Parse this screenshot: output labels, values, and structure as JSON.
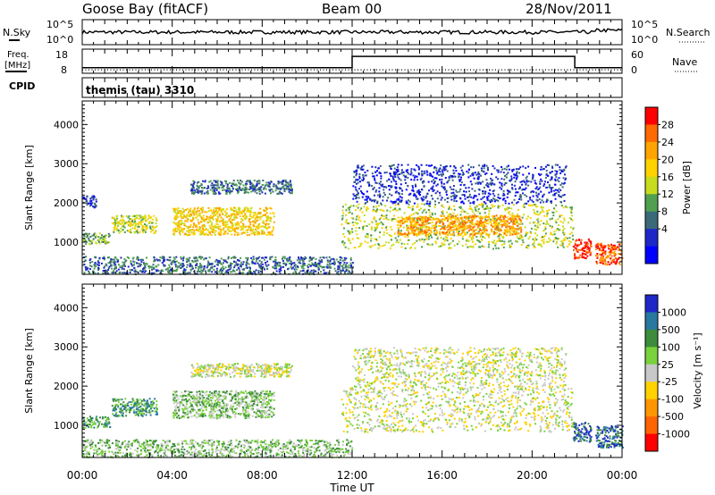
{
  "header": {
    "station": "Goose Bay (fitACF)",
    "beam": "Beam 00",
    "date": "28/Nov/2011"
  },
  "sky_panel": {
    "left_label": "N.Sky",
    "right_label": "N.Search",
    "y_ticks": [
      "10^5",
      "10^0"
    ]
  },
  "freq_panel": {
    "left_label_1": "Freq.",
    "left_label_2": "[MHz]",
    "left_ticks": [
      "18",
      "8"
    ],
    "right_label": "Nave",
    "right_ticks": [
      "60",
      "0"
    ]
  },
  "cpid_panel": {
    "left_label": "CPID",
    "mode_text": "themis (tau) 3310"
  },
  "power_panel": {
    "ylabel": "Slant Range [km]",
    "colorbar_label": "Power [dB]",
    "colorbar_ticks": [
      "28",
      "24",
      "20",
      "16",
      "12",
      "8",
      "4"
    ],
    "colorbar_colors": [
      "#ff0000",
      "#ff6a00",
      "#ffa400",
      "#ffd200",
      "#c8dc1e",
      "#50a050",
      "#3a6a78",
      "#1e28c8",
      "#0000ff"
    ]
  },
  "velocity_panel": {
    "ylabel": "Slant Range [km]",
    "colorbar_label": "Velocity [m s⁻¹]",
    "colorbar_ticks": [
      "1000",
      "500",
      "100",
      "25",
      "-25",
      "-100",
      "-500",
      "-1000"
    ],
    "colorbar_colors": [
      "#1e28c8",
      "#2878a0",
      "#3c8c3c",
      "#78d23c",
      "#c8c8c8",
      "#ffd200",
      "#ff9600",
      "#ff6400",
      "#ff0000"
    ]
  },
  "xaxis": {
    "label": "Time UT",
    "ticks": [
      "00:00",
      "04:00",
      "08:00",
      "12:00",
      "16:00",
      "20:00",
      "00:00"
    ]
  },
  "chart_data": {
    "type": "heatmap",
    "x_unit": "hours UT",
    "xlim": [
      0,
      24
    ],
    "ylim_km": [
      180,
      4600
    ],
    "y_ticks_km": [
      1000,
      2000,
      3000,
      4000
    ],
    "power_regions": [
      {
        "t": [
          0,
          1.2
        ],
        "r": [
          950,
          1250
        ],
        "level": 3
      },
      {
        "t": [
          0,
          0.6
        ],
        "r": [
          1900,
          2200
        ],
        "level": 1
      },
      {
        "t": [
          1.3,
          3.3
        ],
        "r": [
          1250,
          1700
        ],
        "level": 4
      },
      {
        "t": [
          4.0,
          8.5
        ],
        "r": [
          1200,
          1900
        ],
        "level": 5
      },
      {
        "t": [
          4.8,
          9.3
        ],
        "r": [
          2250,
          2600
        ],
        "level": 2
      },
      {
        "t": [
          11.5,
          21.8
        ],
        "r": [
          850,
          2000
        ],
        "level": 4
      },
      {
        "t": [
          14.0,
          19.5
        ],
        "r": [
          1200,
          1700
        ],
        "level": 6
      },
      {
        "t": [
          12.0,
          21.5
        ],
        "r": [
          2000,
          3000
        ],
        "level": 1
      },
      {
        "t": [
          21.8,
          22.6
        ],
        "r": [
          600,
          1100
        ],
        "level": 8
      },
      {
        "t": [
          22.8,
          24
        ],
        "r": [
          450,
          1000
        ],
        "level": 7
      },
      {
        "t": [
          0,
          12.0
        ],
        "r": [
          200,
          650
        ],
        "level": 2
      }
    ],
    "velocity_regions": [
      {
        "t": [
          0,
          1.2
        ],
        "r": [
          950,
          1250
        ],
        "level": 6
      },
      {
        "t": [
          1.3,
          3.3
        ],
        "r": [
          1250,
          1700
        ],
        "level": 6
      },
      {
        "t": [
          4.0,
          8.5
        ],
        "r": [
          1200,
          1900
        ],
        "level": 5
      },
      {
        "t": [
          4.8,
          9.3
        ],
        "r": [
          2250,
          2600
        ],
        "level": 4
      },
      {
        "t": [
          11.5,
          21.8
        ],
        "r": [
          850,
          2000
        ],
        "level": 4
      },
      {
        "t": [
          12.0,
          21.5
        ],
        "r": [
          2000,
          3000
        ],
        "level": 4
      },
      {
        "t": [
          21.8,
          22.6
        ],
        "r": [
          600,
          1100
        ],
        "level": 7
      },
      {
        "t": [
          22.8,
          24
        ],
        "r": [
          450,
          1000
        ],
        "level": 7
      },
      {
        "t": [
          0,
          12.0
        ],
        "r": [
          200,
          650
        ],
        "level": 5
      }
    ],
    "frequency_mhz": [
      {
        "t": 0,
        "v": 10.5
      },
      {
        "t": 12.0,
        "v": 10.5
      },
      {
        "t": 12.0,
        "v": 15.2
      },
      {
        "t": 21.9,
        "v": 15.2
      },
      {
        "t": 21.9,
        "v": 10.5
      },
      {
        "t": 24,
        "v": 10.5
      }
    ],
    "nave": [
      {
        "t": 0,
        "v": 2
      },
      {
        "t": 24,
        "v": 2
      }
    ]
  }
}
